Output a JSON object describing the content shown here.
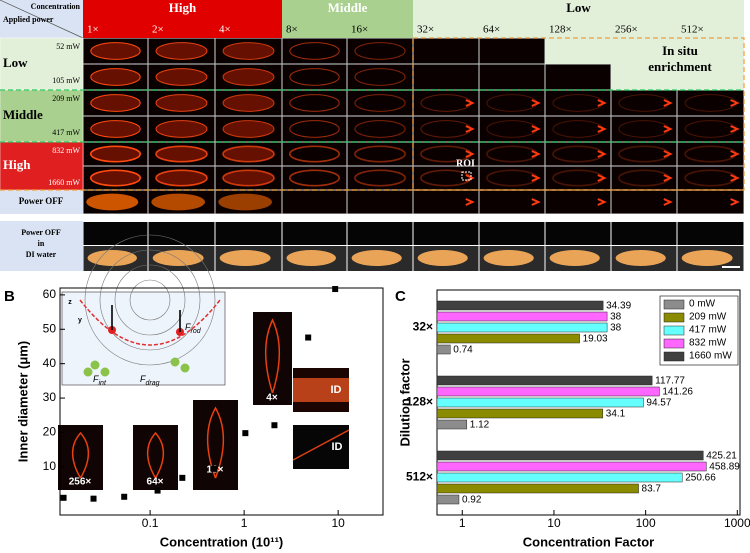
{
  "panel_labels": [
    "A",
    "B",
    "C"
  ],
  "panel_a": {
    "corner": [
      "Concentration",
      "Applied power"
    ],
    "groups": [
      "High",
      "Middle",
      "Low"
    ],
    "concentrations": [
      "1×",
      "2×",
      "4×",
      "8×",
      "16×",
      "32×",
      "64×",
      "128×",
      "256×",
      "512×"
    ],
    "rows": [
      {
        "group": "Low",
        "powers": [
          "52 mW",
          "105 mW"
        ]
      },
      {
        "group": "Middle",
        "powers": [
          "209 mW",
          "417 mW"
        ]
      },
      {
        "group": "High",
        "powers": [
          "832 mW",
          "1660 mW"
        ]
      }
    ],
    "power_off": "Power OFF",
    "power_off_di": [
      "Power OFF",
      "in",
      "DI water"
    ],
    "roi": "ROI",
    "in_situ": [
      "In situ",
      "enrichment"
    ]
  },
  "chart_data": [
    {
      "type": "scatter",
      "x_label": "Concentration (10¹¹)",
      "y_label": "Inner diameter (μm)",
      "x": [
        9.3,
        4.8,
        2.1,
        1.03,
        0.48,
        0.22,
        0.12,
        0.053,
        0.025,
        0.012
      ],
      "values": [
        61.7,
        47.6,
        22.1,
        19.8,
        9.4,
        6.8,
        3.1,
        1.3,
        0.75,
        1.0
      ],
      "color": "#000000",
      "log_x": true,
      "xlim": [
        0.011,
        30
      ],
      "xticks": [
        0.1,
        1,
        10
      ],
      "ylim": [
        -4,
        62
      ],
      "yticks": [
        10,
        20,
        30,
        40,
        50,
        60
      ],
      "annotations": [
        "256×",
        "64×",
        "16×",
        "4×",
        "ID",
        "ID",
        "z",
        "y"
      ],
      "forces": [
        {
          "symbol": "F",
          "sub": "rod"
        },
        {
          "symbol": "F",
          "sub": "int"
        },
        {
          "symbol": "F",
          "sub": "drag"
        }
      ]
    },
    {
      "type": "hbar",
      "x_label": "Concentration Factor",
      "y_label": "Dilution factor",
      "log_x": true,
      "categories": [
        "32×",
        "128×",
        "512×"
      ],
      "series": [
        {
          "name": "0 mW",
          "color": "#8c8c8c",
          "values": [
            0.74,
            1.12,
            0.92
          ]
        },
        {
          "name": "209 mW",
          "color": "#8b8b00",
          "values": [
            19.03,
            34.1,
            83.7
          ]
        },
        {
          "name": "417 mW",
          "color": "#66ffff",
          "values": [
            38,
            94.57,
            250.66
          ]
        },
        {
          "name": "832 mW",
          "color": "#ff66ff",
          "values": [
            38,
            141.26,
            458.89
          ]
        },
        {
          "name": "1660 mW",
          "color": "#404040",
          "values": [
            34.39,
            117.77,
            425.21
          ]
        }
      ],
      "xlim": [
        0.53,
        1070
      ],
      "xticks": [
        1,
        10,
        100,
        1000
      ],
      "legend": "upper right"
    }
  ]
}
